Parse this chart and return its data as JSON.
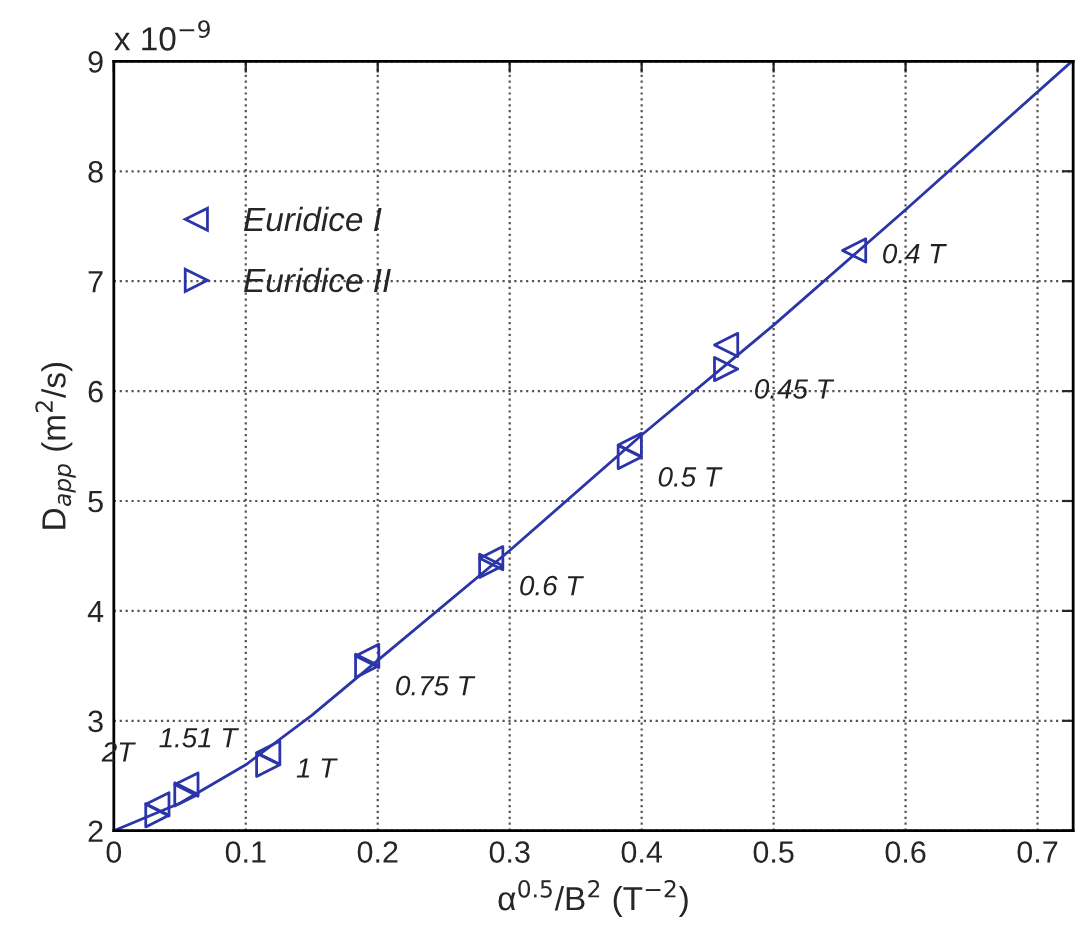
{
  "chart_data": {
    "type": "scatter",
    "xlabel": "α$^{0.5}$/B$^{2}$ (T$^{−2}$)",
    "ylabel": "D$_{app}$ (m$^{2}$/s)",
    "x": [
      0.561,
      0.464,
      0.391,
      0.286,
      0.192,
      0.117,
      0.055,
      0.033
    ],
    "series": [
      {
        "name": "Euridice I",
        "color": "#2b35a8",
        "marker": "triangle",
        "values": [
          7.28,
          6.42,
          5.51,
          4.48,
          3.59,
          2.71,
          2.42,
          2.24
        ]
      },
      {
        "name": "Euridice II",
        "color": "#2b35a8",
        "marker": "triangle",
        "values": [
          null,
          6.2,
          5.4,
          4.41,
          3.5,
          2.6,
          2.33,
          2.14
        ]
      },
      {
        "type": "line",
        "color": "#2b35a8",
        "marker": "none",
        "x": [
          0,
          0.05,
          0.1,
          0.15,
          0.2,
          0.3,
          0.4,
          0.5,
          0.6,
          0.726
        ],
        "values": [
          2.0,
          2.25,
          2.6,
          3.05,
          3.55,
          4.55,
          5.6,
          6.6,
          7.65,
          9.0
        ]
      }
    ],
    "xlim": [
      0,
      0.727
    ],
    "ylim": [
      2,
      9
    ],
    "xticks": [
      0,
      0.1,
      0.2,
      0.3,
      0.4,
      0.5,
      0.6,
      0.7
    ],
    "yticks": [
      2,
      3,
      4,
      5,
      6,
      7,
      8,
      9
    ],
    "grid": true,
    "legend": "top left",
    "annotations": [
      "x 10$^{−9}$",
      {
        "text": "0.4 T",
        "x": 0.561,
        "y": 7.28
      },
      {
        "text": "0.45 T",
        "x": 0.464,
        "y": 6.2
      },
      {
        "text": "0.5 T",
        "x": 0.391,
        "y": 5.4
      },
      {
        "text": "0.6 T",
        "x": 0.286,
        "y": 4.41
      },
      {
        "text": "0.75 T",
        "x": 0.192,
        "y": 3.5
      },
      {
        "text": "1 T",
        "x": 0.117,
        "y": 2.6
      },
      {
        "text": "1.51 T",
        "x": 0.055,
        "y": 2.42
      },
      {
        "text": "2T",
        "x": 0.033,
        "y": 2.24
      }
    ]
  }
}
